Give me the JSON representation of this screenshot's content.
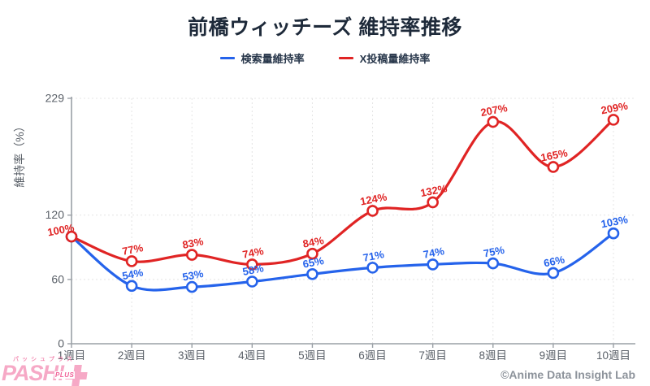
{
  "page": {
    "footer_credit": "©Anime Data Insight Lab"
  },
  "logo": {
    "kana": "パッシュプラス",
    "name": "PASH!",
    "plus_label": "PLUS"
  },
  "chart_data": {
    "type": "line",
    "title": "前橋ウィッチーズ 維持率推移",
    "ylabel": "維持率（%）",
    "xlabel": "",
    "categories": [
      "1週目",
      "2週目",
      "3週目",
      "4週目",
      "5週目",
      "6週目",
      "7週目",
      "8週目",
      "9週目",
      "10週目"
    ],
    "y_ticks": [
      0,
      60,
      120,
      229
    ],
    "ylim": [
      0,
      229
    ],
    "grid": true,
    "legend_position": "top",
    "colors": {
      "axis": "#9aa0a6",
      "grid": "#e4e4e4",
      "tick_label": "#5a6068"
    },
    "series": [
      {
        "name": "検索量維持率",
        "color": "#2563eb",
        "values": [
          100,
          54,
          53,
          58,
          65,
          71,
          74,
          75,
          66,
          103
        ],
        "labels": [
          "",
          "54%",
          "53%",
          "58%",
          "65%",
          "71%",
          "74%",
          "75%",
          "66%",
          "103%"
        ]
      },
      {
        "name": "X投稿量維持率",
        "color": "#e02424",
        "values": [
          100,
          77,
          83,
          74,
          84,
          124,
          132,
          207,
          165,
          209
        ],
        "labels": [
          "100%",
          "77%",
          "83%",
          "74%",
          "84%",
          "124%",
          "132%",
          "207%",
          "165%",
          "209%"
        ]
      }
    ]
  }
}
